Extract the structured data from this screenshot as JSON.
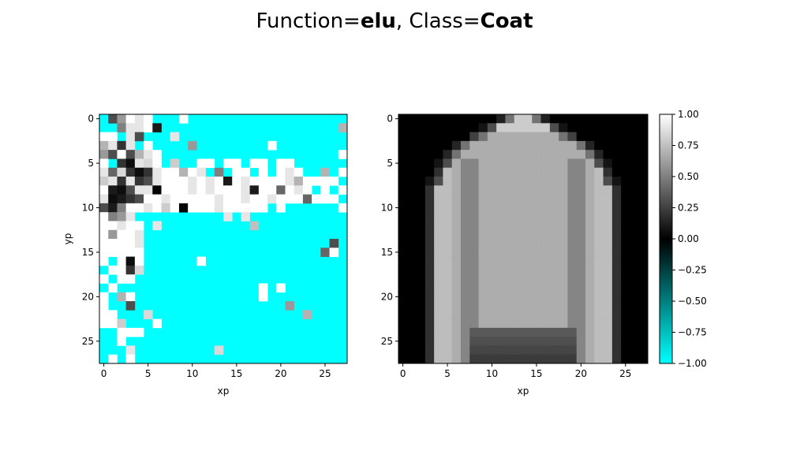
{
  "title": {
    "prefix": "Function=",
    "function": "elu",
    "separator": ", Class=",
    "class": "Coat"
  },
  "chart_data": [
    {
      "type": "heatmap",
      "name": "activation-map",
      "xlabel": "xp",
      "ylabel": "yp",
      "rows": 28,
      "cols": 28,
      "x_ticks": [
        0,
        5,
        10,
        15,
        20,
        25
      ],
      "y_ticks": [
        0,
        5,
        10,
        15,
        20,
        25
      ],
      "value_range": [
        -1,
        1
      ],
      "grid": false,
      "background_value": -1,
      "cells": [
        [
          0,
          1,
          0.3
        ],
        [
          0,
          2,
          0.6
        ],
        [
          0,
          3,
          1
        ],
        [
          0,
          4,
          0.9
        ],
        [
          0,
          5,
          1
        ],
        [
          0,
          9,
          1
        ],
        [
          1,
          2,
          0.5
        ],
        [
          1,
          3,
          0.9
        ],
        [
          1,
          4,
          0.9
        ],
        [
          1,
          5,
          1
        ],
        [
          1,
          6,
          0.1
        ],
        [
          1,
          27,
          0.7
        ],
        [
          2,
          0,
          1
        ],
        [
          2,
          1,
          1
        ],
        [
          2,
          3,
          0.9
        ],
        [
          2,
          4,
          0.3
        ],
        [
          2,
          8,
          0.9
        ],
        [
          3,
          0,
          0.7
        ],
        [
          3,
          1,
          0.9
        ],
        [
          3,
          2,
          0.2
        ],
        [
          3,
          3,
          0.9
        ],
        [
          3,
          5,
          1
        ],
        [
          3,
          10,
          0.6
        ],
        [
          3,
          19,
          1
        ],
        [
          4,
          0,
          0.6
        ],
        [
          4,
          1,
          0.3
        ],
        [
          4,
          2,
          1
        ],
        [
          4,
          3,
          0.3
        ],
        [
          4,
          4,
          0.7
        ],
        [
          4,
          5,
          0.9
        ],
        [
          4,
          6,
          1
        ],
        [
          4,
          27,
          1
        ],
        [
          5,
          0,
          1
        ],
        [
          5,
          2,
          0.2
        ],
        [
          5,
          3,
          0.05
        ],
        [
          5,
          4,
          0.9
        ],
        [
          5,
          5,
          0.85
        ],
        [
          5,
          6,
          1
        ],
        [
          5,
          8,
          0.8
        ],
        [
          5,
          11,
          1
        ],
        [
          5,
          12,
          1
        ],
        [
          5,
          14,
          1
        ],
        [
          5,
          15,
          1
        ],
        [
          5,
          17,
          1
        ],
        [
          5,
          18,
          1
        ],
        [
          5,
          20,
          1
        ],
        [
          5,
          21,
          1
        ],
        [
          6,
          0,
          0.9
        ],
        [
          6,
          1,
          0.4
        ],
        [
          6,
          2,
          0.85
        ],
        [
          6,
          3,
          0.2
        ],
        [
          6,
          4,
          0.05
        ],
        [
          6,
          5,
          0.2
        ],
        [
          6,
          6,
          0.9
        ],
        [
          6,
          7,
          1
        ],
        [
          6,
          8,
          1
        ],
        [
          6,
          9,
          0.7
        ],
        [
          6,
          10,
          1
        ],
        [
          6,
          11,
          0.9
        ],
        [
          6,
          13,
          0.5
        ],
        [
          6,
          15,
          1
        ],
        [
          6,
          16,
          1
        ],
        [
          6,
          18,
          1
        ],
        [
          6,
          20,
          1
        ],
        [
          6,
          21,
          0.9
        ],
        [
          6,
          22,
          1
        ],
        [
          6,
          25,
          0.7
        ],
        [
          6,
          27,
          1
        ],
        [
          7,
          0,
          0.8
        ],
        [
          7,
          1,
          0.9
        ],
        [
          7,
          2,
          0.2
        ],
        [
          7,
          3,
          0.9
        ],
        [
          7,
          4,
          0.2
        ],
        [
          7,
          5,
          0.3
        ],
        [
          7,
          6,
          0.9
        ],
        [
          7,
          7,
          1
        ],
        [
          7,
          8,
          1
        ],
        [
          7,
          9,
          1
        ],
        [
          7,
          10,
          0.9
        ],
        [
          7,
          11,
          1
        ],
        [
          7,
          12,
          0.9
        ],
        [
          7,
          13,
          1
        ],
        [
          7,
          14,
          0.1
        ],
        [
          7,
          15,
          1
        ],
        [
          7,
          16,
          0.9
        ],
        [
          7,
          17,
          1
        ],
        [
          7,
          18,
          1
        ],
        [
          7,
          19,
          1
        ],
        [
          7,
          20,
          1
        ],
        [
          7,
          21,
          0.9
        ],
        [
          7,
          22,
          0.7
        ],
        [
          7,
          23,
          1
        ],
        [
          7,
          24,
          1
        ],
        [
          7,
          25,
          1
        ],
        [
          7,
          26,
          1
        ],
        [
          8,
          0,
          1
        ],
        [
          8,
          1,
          0.1
        ],
        [
          8,
          2,
          0.05
        ],
        [
          8,
          3,
          0.3
        ],
        [
          8,
          4,
          0.9
        ],
        [
          8,
          5,
          0.9
        ],
        [
          8,
          6,
          0.02
        ],
        [
          8,
          7,
          1
        ],
        [
          8,
          8,
          1
        ],
        [
          8,
          9,
          1
        ],
        [
          8,
          10,
          0.9
        ],
        [
          8,
          11,
          1
        ],
        [
          8,
          12,
          0.9
        ],
        [
          8,
          13,
          1
        ],
        [
          8,
          14,
          1
        ],
        [
          8,
          15,
          1
        ],
        [
          8,
          16,
          0.9
        ],
        [
          8,
          17,
          0.1
        ],
        [
          8,
          18,
          1
        ],
        [
          8,
          19,
          1
        ],
        [
          8,
          20,
          0.4
        ],
        [
          8,
          21,
          1
        ],
        [
          8,
          22,
          0.9
        ],
        [
          8,
          23,
          1
        ],
        [
          8,
          25,
          1
        ],
        [
          8,
          27,
          1
        ],
        [
          9,
          0,
          0.9
        ],
        [
          9,
          1,
          0.05
        ],
        [
          9,
          2,
          0.1
        ],
        [
          9,
          3,
          0.2
        ],
        [
          9,
          4,
          0.3
        ],
        [
          9,
          5,
          1
        ],
        [
          9,
          6,
          1
        ],
        [
          9,
          7,
          0.9
        ],
        [
          9,
          8,
          1
        ],
        [
          9,
          9,
          1
        ],
        [
          9,
          10,
          1
        ],
        [
          9,
          11,
          1
        ],
        [
          9,
          12,
          1
        ],
        [
          9,
          13,
          0.9
        ],
        [
          9,
          14,
          1
        ],
        [
          9,
          15,
          1
        ],
        [
          9,
          16,
          0.9
        ],
        [
          9,
          17,
          1
        ],
        [
          9,
          18,
          1
        ],
        [
          9,
          19,
          0.9
        ],
        [
          9,
          20,
          1
        ],
        [
          9,
          21,
          1
        ],
        [
          9,
          22,
          1
        ],
        [
          9,
          23,
          0.4
        ],
        [
          9,
          24,
          1
        ],
        [
          9,
          25,
          1
        ],
        [
          9,
          26,
          1
        ],
        [
          10,
          0,
          0.3
        ],
        [
          10,
          1,
          0.1
        ],
        [
          10,
          2,
          0.5
        ],
        [
          10,
          3,
          1
        ],
        [
          10,
          4,
          1
        ],
        [
          10,
          5,
          0.9
        ],
        [
          10,
          6,
          1
        ],
        [
          10,
          7,
          0.8
        ],
        [
          10,
          8,
          1
        ],
        [
          10,
          9,
          0.02
        ],
        [
          10,
          10,
          1
        ],
        [
          10,
          11,
          1
        ],
        [
          10,
          12,
          1
        ],
        [
          10,
          13,
          0.9
        ],
        [
          10,
          14,
          1
        ],
        [
          10,
          15,
          1
        ],
        [
          10,
          16,
          1
        ],
        [
          10,
          17,
          1
        ],
        [
          10,
          18,
          1
        ],
        [
          10,
          20,
          1
        ],
        [
          10,
          27,
          1
        ],
        [
          11,
          0,
          1
        ],
        [
          11,
          1,
          0.5
        ],
        [
          11,
          2,
          0.6
        ],
        [
          11,
          3,
          0.9
        ],
        [
          11,
          14,
          0.9
        ],
        [
          11,
          16,
          0.9
        ],
        [
          12,
          0,
          1
        ],
        [
          12,
          1,
          1
        ],
        [
          12,
          2,
          0.9
        ],
        [
          12,
          3,
          1
        ],
        [
          12,
          4,
          1
        ],
        [
          12,
          6,
          0.9
        ],
        [
          12,
          17,
          0.75
        ],
        [
          13,
          0,
          1
        ],
        [
          13,
          1,
          0.6
        ],
        [
          13,
          2,
          1
        ],
        [
          13,
          3,
          1
        ],
        [
          13,
          4,
          0.9
        ],
        [
          14,
          0,
          1
        ],
        [
          14,
          1,
          1
        ],
        [
          14,
          2,
          1
        ],
        [
          14,
          3,
          1
        ],
        [
          14,
          4,
          0.9
        ],
        [
          14,
          26,
          0.3
        ],
        [
          15,
          0,
          1
        ],
        [
          15,
          1,
          1
        ],
        [
          15,
          2,
          1
        ],
        [
          15,
          3,
          1
        ],
        [
          15,
          4,
          1
        ],
        [
          15,
          25,
          0.4
        ],
        [
          15,
          26,
          1
        ],
        [
          16,
          0,
          1
        ],
        [
          16,
          2,
          1
        ],
        [
          16,
          3,
          0.05
        ],
        [
          16,
          4,
          1
        ],
        [
          16,
          11,
          1
        ],
        [
          17,
          1,
          1
        ],
        [
          17,
          2,
          1
        ],
        [
          17,
          3,
          0.2
        ],
        [
          17,
          4,
          0.85
        ],
        [
          18,
          0,
          1
        ],
        [
          18,
          2,
          1
        ],
        [
          18,
          3,
          1
        ],
        [
          19,
          1,
          1
        ],
        [
          19,
          18,
          1
        ],
        [
          19,
          20,
          1
        ],
        [
          20,
          0,
          1
        ],
        [
          20,
          2,
          0.7
        ],
        [
          20,
          3,
          1
        ],
        [
          20,
          18,
          1
        ],
        [
          21,
          0,
          1
        ],
        [
          21,
          3,
          0.3
        ],
        [
          21,
          21,
          0.6
        ],
        [
          22,
          0,
          1
        ],
        [
          22,
          1,
          1
        ],
        [
          22,
          5,
          0.85
        ],
        [
          22,
          23,
          0.7
        ],
        [
          23,
          0,
          1
        ],
        [
          23,
          1,
          1
        ],
        [
          23,
          2,
          0.8
        ],
        [
          23,
          6,
          1
        ],
        [
          24,
          2,
          1
        ],
        [
          24,
          3,
          1
        ],
        [
          24,
          4,
          1
        ],
        [
          25,
          2,
          1
        ],
        [
          26,
          3,
          0.9
        ],
        [
          26,
          13,
          0.85
        ],
        [
          27,
          1,
          1
        ],
        [
          27,
          3,
          1
        ]
      ]
    },
    {
      "type": "heatmap",
      "name": "input-image",
      "xlabel": "xp",
      "ylabel": "",
      "rows": 28,
      "cols": 28,
      "x_ticks": [
        0,
        5,
        10,
        15,
        20,
        25
      ],
      "y_ticks": [
        0,
        5,
        10,
        15,
        20,
        25
      ],
      "value_range": [
        -1,
        1
      ],
      "grid": false,
      "description_of_pixels": "coat silhouette",
      "colorbar": {
        "ticks": [
          1.0,
          0.75,
          0.5,
          0.25,
          0.0,
          -0.25,
          -0.5,
          -0.75,
          -1.0
        ],
        "tick_labels": [
          "1.00",
          "0.75",
          "0.50",
          "0.25",
          "0.00",
          "−0.25",
          "−0.50",
          "−0.75",
          "−1.00"
        ]
      }
    }
  ],
  "colormap": {
    "stops": [
      {
        "value": -1.0,
        "color": "#00ffff"
      },
      {
        "value": 0.0,
        "color": "#000000"
      },
      {
        "value": 1.0,
        "color": "#ffffff"
      }
    ]
  }
}
